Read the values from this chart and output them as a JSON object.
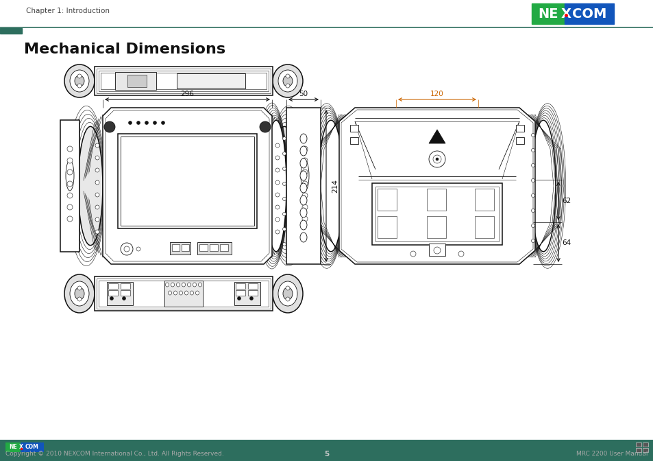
{
  "title": "Mechanical Dimensions",
  "header_text": "Chapter 1: Introduction",
  "footer_left": "Copyright © 2010 NEXCOM International Co., Ltd. All Rights Reserved.",
  "footer_center": "5",
  "footer_right": "MRC 2200 User Manual",
  "dim_296": "296",
  "dim_50": "50",
  "dim_214": "214",
  "dim_120": "120",
  "dim_62": "62",
  "dim_64": "64",
  "bg_color": "#ffffff",
  "footer_bg": "#2d6e5e",
  "dark_green": "#2d6e5e",
  "teal_line": "#2d6e5e",
  "orange_dim": "#cc6600",
  "title_font_size": 16,
  "header_font_size": 7.5,
  "footer_font_size": 6.5
}
